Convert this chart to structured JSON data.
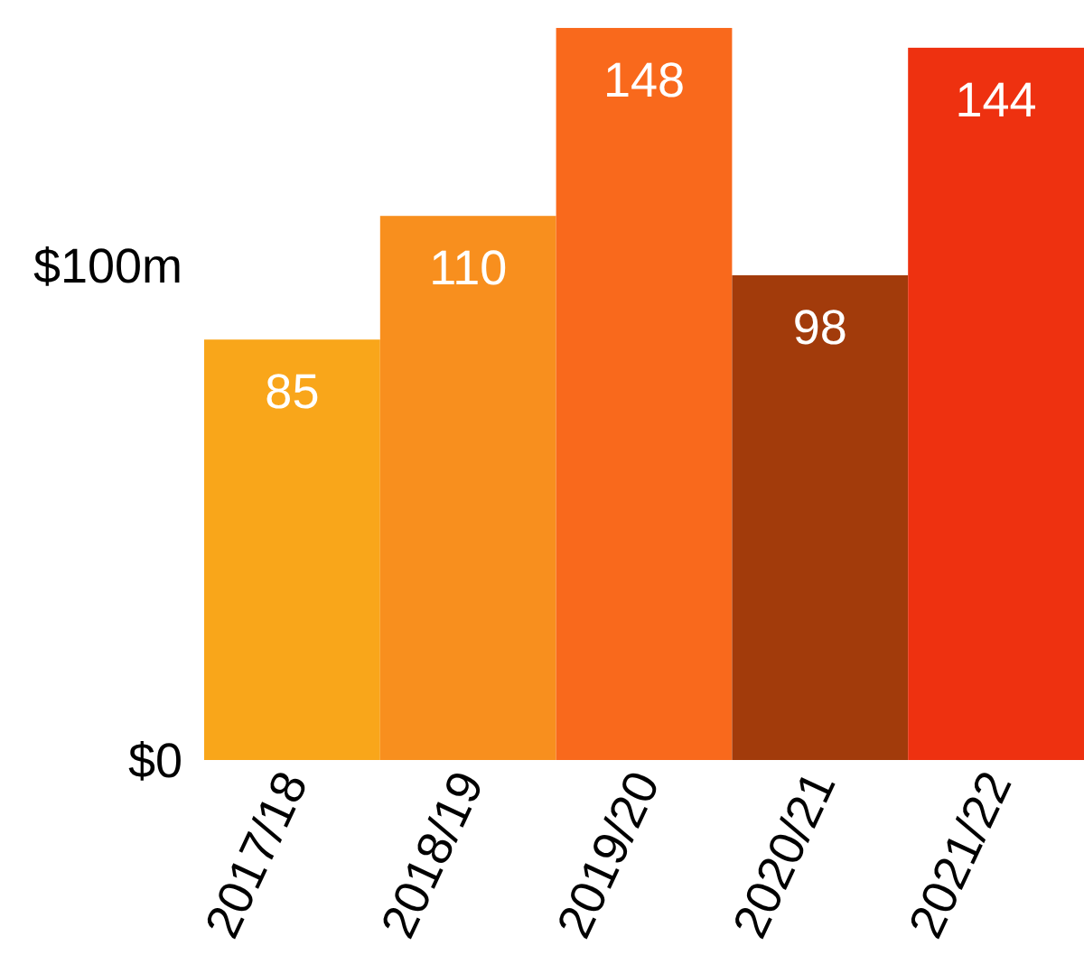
{
  "chart_data": {
    "type": "bar",
    "categories": [
      "2017/18",
      "2018/19",
      "2019/20",
      "2020/21",
      "2021/22"
    ],
    "values": [
      85,
      110,
      148,
      98,
      144
    ],
    "colors": [
      "#f9a61a",
      "#f88f1e",
      "#f9691c",
      "#a23b0b",
      "#ee3110"
    ],
    "ylim": [
      0,
      150
    ],
    "yticks": [
      {
        "value": 0,
        "label": "$0"
      },
      {
        "value": 100,
        "label": "$100m"
      }
    ],
    "data_labels": true,
    "grid": false
  }
}
